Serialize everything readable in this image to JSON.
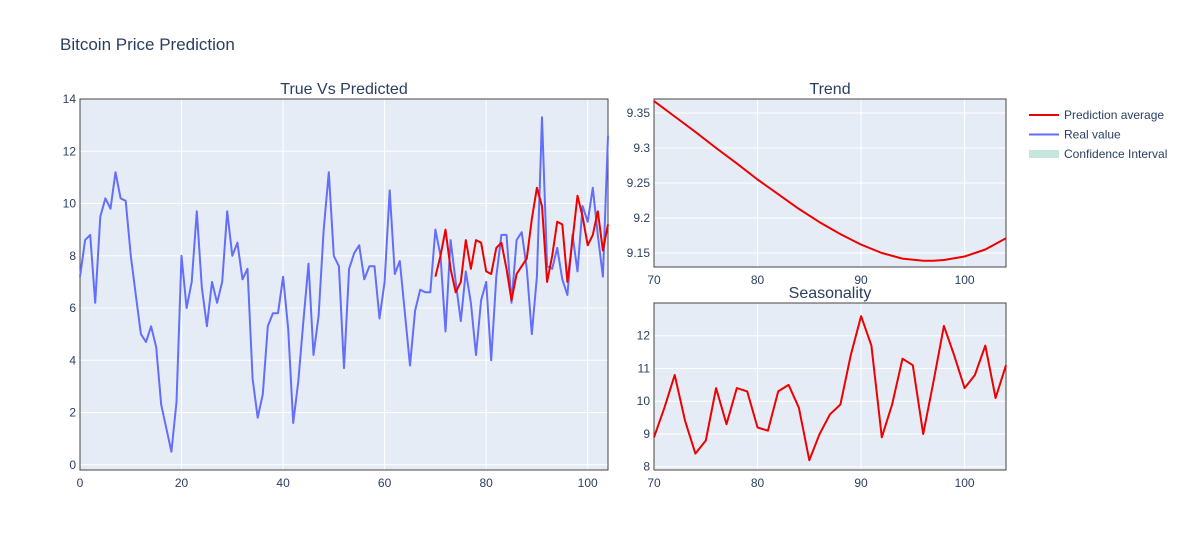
{
  "title": "Bitcoin Price Prediction",
  "colors": {
    "prediction": "#ee0000",
    "real": "#636efa",
    "confidence": "#c5e6dd",
    "plot_bg": "#e5ecf6",
    "text": "#2a3f5f"
  },
  "legend": {
    "placement": "top-right",
    "items": [
      {
        "label": "Prediction average",
        "color": "#ee0000",
        "kind": "line"
      },
      {
        "label": "Real value",
        "color": "#636efa",
        "kind": "line"
      },
      {
        "label": "Confidence Interval",
        "color": "#c5e6dd",
        "kind": "band"
      }
    ]
  },
  "chart_data": [
    {
      "type": "line",
      "title": "True Vs Predicted",
      "xlim": [
        0,
        104
      ],
      "ylim": [
        -0.2,
        14
      ],
      "xticks": [
        0,
        20,
        40,
        60,
        80,
        100
      ],
      "yticks": [
        0,
        2,
        4,
        6,
        8,
        10,
        12,
        14
      ],
      "grid": true,
      "series": [
        {
          "name": "Real value",
          "color": "#636efa",
          "x": [
            0,
            1,
            2,
            3,
            4,
            5,
            6,
            7,
            8,
            9,
            10,
            11,
            12,
            13,
            14,
            15,
            16,
            17,
            18,
            19,
            20,
            21,
            22,
            23,
            24,
            25,
            26,
            27,
            28,
            29,
            30,
            31,
            32,
            33,
            34,
            35,
            36,
            37,
            38,
            39,
            40,
            41,
            42,
            43,
            44,
            45,
            46,
            47,
            48,
            49,
            50,
            51,
            52,
            53,
            54,
            55,
            56,
            57,
            58,
            59,
            60,
            61,
            62,
            63,
            64,
            65,
            66,
            67,
            68,
            69,
            70,
            71,
            72,
            73,
            74,
            75,
            76,
            77,
            78,
            79,
            80,
            81,
            82,
            83,
            84,
            85,
            86,
            87,
            88,
            89,
            90,
            91,
            92,
            93,
            94,
            95,
            96,
            97,
            98,
            99,
            100,
            101,
            102,
            103,
            104
          ],
          "values": [
            7.2,
            8.6,
            8.8,
            6.2,
            9.5,
            10.2,
            9.8,
            11.2,
            10.2,
            10.1,
            8.0,
            6.5,
            5.0,
            4.7,
            5.3,
            4.5,
            2.3,
            1.4,
            0.5,
            2.4,
            8.0,
            6.0,
            7.0,
            9.7,
            6.8,
            5.3,
            7.0,
            6.2,
            7.0,
            9.7,
            8.0,
            8.5,
            7.1,
            7.5,
            3.3,
            1.8,
            2.7,
            5.3,
            5.8,
            5.8,
            7.2,
            5.2,
            1.6,
            3.2,
            5.5,
            7.7,
            4.2,
            5.7,
            9.0,
            11.2,
            8.0,
            7.6,
            3.7,
            7.5,
            8.1,
            8.4,
            7.1,
            7.6,
            7.6,
            5.6,
            7.0,
            10.5,
            7.3,
            7.8,
            5.8,
            3.8,
            5.9,
            6.7,
            6.6,
            6.6,
            9.0,
            8.0,
            5.1,
            8.6,
            7.0,
            5.5,
            7.4,
            6.2,
            4.2,
            6.3,
            7.0,
            4.0,
            7.2,
            8.8,
            8.8,
            6.2,
            8.6,
            8.9,
            7.5,
            5.0,
            7.2,
            13.3,
            7.6,
            7.5,
            8.3,
            7.1,
            6.5,
            8.8,
            7.4,
            9.9,
            9.3,
            10.6,
            8.8,
            7.2,
            12.6
          ]
        },
        {
          "name": "Prediction average",
          "color": "#ee0000",
          "x": [
            70,
            71,
            72,
            73,
            74,
            75,
            76,
            77,
            78,
            79,
            80,
            81,
            82,
            83,
            84,
            85,
            86,
            87,
            88,
            89,
            90,
            91,
            92,
            93,
            94,
            95,
            96,
            97,
            98,
            99,
            100,
            101,
            102,
            103,
            104
          ],
          "values": [
            7.2,
            8.0,
            9.0,
            7.5,
            6.6,
            7.0,
            8.6,
            7.5,
            8.6,
            8.5,
            7.4,
            7.3,
            8.3,
            8.5,
            7.5,
            6.3,
            7.3,
            7.6,
            7.9,
            9.4,
            10.6,
            9.9,
            7.0,
            8.0,
            9.3,
            9.2,
            7.0,
            8.6,
            10.3,
            9.5,
            8.4,
            8.8,
            9.7,
            8.2,
            9.2
          ]
        }
      ]
    },
    {
      "type": "line",
      "title": "Trend",
      "xlim": [
        70,
        104
      ],
      "ylim": [
        9.13,
        9.37
      ],
      "xticks": [
        70,
        80,
        90,
        100
      ],
      "yticks": [
        9.15,
        9.2,
        9.25,
        9.3,
        9.35
      ],
      "ytick_labels": [
        "9.15",
        "9.2",
        "9.25",
        "9.3",
        "9.35"
      ],
      "grid": true,
      "series": [
        {
          "name": "Prediction average",
          "color": "#ee0000",
          "x": [
            70,
            72,
            74,
            76,
            78,
            80,
            82,
            84,
            86,
            88,
            90,
            92,
            94,
            96,
            97,
            98,
            100,
            102,
            104
          ],
          "values": [
            9.367,
            9.345,
            9.323,
            9.3,
            9.278,
            9.255,
            9.234,
            9.213,
            9.194,
            9.177,
            9.162,
            9.15,
            9.142,
            9.139,
            9.139,
            9.14,
            9.145,
            9.155,
            9.171
          ]
        }
      ]
    },
    {
      "type": "line",
      "title": "Seasonality",
      "xlim": [
        70,
        104
      ],
      "ylim": [
        7.9,
        13
      ],
      "xticks": [
        70,
        80,
        90,
        100
      ],
      "yticks": [
        8,
        9,
        10,
        11,
        12
      ],
      "grid": true,
      "series": [
        {
          "name": "Prediction average",
          "color": "#ee0000",
          "x": [
            70,
            71,
            72,
            73,
            74,
            75,
            76,
            77,
            78,
            79,
            80,
            81,
            82,
            83,
            84,
            85,
            86,
            87,
            88,
            89,
            90,
            91,
            92,
            93,
            94,
            95,
            96,
            97,
            98,
            99,
            100,
            101,
            102,
            103,
            104
          ],
          "values": [
            8.9,
            9.8,
            10.8,
            9.4,
            8.4,
            8.8,
            10.4,
            9.3,
            10.4,
            10.3,
            9.2,
            9.1,
            10.3,
            10.5,
            9.8,
            8.2,
            9.0,
            9.6,
            9.9,
            11.4,
            12.6,
            11.7,
            8.9,
            9.9,
            11.3,
            11.1,
            9.0,
            10.6,
            12.3,
            11.4,
            10.4,
            10.8,
            11.7,
            10.1,
            11.1
          ]
        }
      ]
    }
  ]
}
